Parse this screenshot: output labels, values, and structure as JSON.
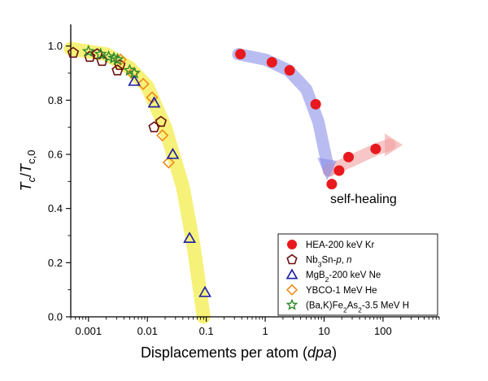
{
  "chart_data": {
    "type": "scatter",
    "xscale": "log",
    "xlim": [
      0.0005,
      900
    ],
    "ylim": [
      0,
      1.08
    ],
    "xlabel_main": "Displacements per atom (",
    "xlabel_italic": "dpa",
    "xlabel_end": ")",
    "ylabel": "T_c/T_c,0",
    "xticks": [
      0.001,
      0.01,
      0.1,
      1,
      10,
      100
    ],
    "xtick_labels": [
      "0.001",
      "0.01",
      "0.1",
      "1",
      "10",
      "100"
    ],
    "yticks": [
      0.0,
      0.2,
      0.4,
      0.6,
      0.8,
      1.0
    ],
    "ytick_labels": [
      "0.0",
      "0.2",
      "0.4",
      "0.6",
      "0.8",
      "1.0"
    ],
    "annotation": "self-healing",
    "series": [
      {
        "name": "HEA-200 keV Kr",
        "marker": "filled-circle",
        "color": "#e8191e",
        "points": [
          [
            0.38,
            0.97
          ],
          [
            1.3,
            0.94
          ],
          [
            2.6,
            0.91
          ],
          [
            7.2,
            0.785
          ],
          [
            13.5,
            0.49
          ],
          [
            18,
            0.54
          ],
          [
            26,
            0.59
          ],
          [
            75,
            0.62
          ]
        ]
      },
      {
        "name": "Nb3Sn-p, n",
        "marker": "open-pentagon",
        "color": "#6b0f0f",
        "points": [
          [
            0.00055,
            0.975
          ],
          [
            0.00105,
            0.96
          ],
          [
            0.0014,
            0.97
          ],
          [
            0.0017,
            0.945
          ],
          [
            0.0031,
            0.91
          ],
          [
            0.0034,
            0.93
          ],
          [
            0.013,
            0.7
          ],
          [
            0.017,
            0.72
          ]
        ]
      },
      {
        "name": "MgB2-200 keV Ne",
        "marker": "open-triangle",
        "color": "#1a1aa8",
        "points": [
          [
            0.006,
            0.87
          ],
          [
            0.013,
            0.79
          ],
          [
            0.027,
            0.6
          ],
          [
            0.052,
            0.29
          ],
          [
            0.095,
            0.09
          ]
        ]
      },
      {
        "name": "YBCO-1 MeV He",
        "marker": "open-diamond",
        "color": "#f08a1c",
        "points": [
          [
            0.0035,
            0.95
          ],
          [
            0.0056,
            0.9
          ],
          [
            0.0085,
            0.86
          ],
          [
            0.012,
            0.81
          ],
          [
            0.018,
            0.67
          ],
          [
            0.023,
            0.57
          ]
        ]
      },
      {
        "name": "(Ba,K)Fe2As2-3.5 MeV H",
        "marker": "open-star",
        "color": "#2f8a2f",
        "points": [
          [
            0.001,
            0.98
          ],
          [
            0.0016,
            0.97
          ],
          [
            0.0022,
            0.96
          ],
          [
            0.0027,
            0.955
          ],
          [
            0.0031,
            0.95
          ],
          [
            0.005,
            0.91
          ],
          [
            0.006,
            0.9
          ]
        ]
      }
    ],
    "bands": [
      {
        "color": "#f5f06a",
        "points": [
          [
            0.0005,
            0.99
          ],
          [
            0.002,
            0.97
          ],
          [
            0.005,
            0.92
          ],
          [
            0.01,
            0.85
          ],
          [
            0.02,
            0.7
          ],
          [
            0.04,
            0.48
          ],
          [
            0.06,
            0.27
          ],
          [
            0.08,
            0.08
          ],
          [
            0.09,
            0.0
          ]
        ]
      },
      {
        "color": "#8b8fe8",
        "points": [
          [
            0.35,
            0.97
          ],
          [
            1,
            0.95
          ],
          [
            2.5,
            0.91
          ],
          [
            5,
            0.84
          ],
          [
            8,
            0.72
          ],
          [
            10,
            0.62
          ],
          [
            12,
            0.54
          ]
        ]
      },
      {
        "color": "#f2a0a0",
        "points": [
          [
            12,
            0.54
          ],
          [
            20,
            0.56
          ],
          [
            40,
            0.59
          ],
          [
            80,
            0.62
          ],
          [
            130,
            0.635
          ]
        ]
      }
    ],
    "legend": {
      "position": "bottom-right",
      "entries": [
        {
          "main": "HEA-200 keV Kr"
        },
        {
          "main": "Nb",
          "sub": "3",
          "after": "Sn-",
          "italic": "p",
          "after2": ", ",
          "italic2": "n"
        },
        {
          "main": "MgB",
          "sub": "2",
          "after": "-200 keV Ne"
        },
        {
          "main": "YBCO-1 MeV He"
        },
        {
          "main": "(Ba,K)Fe",
          "sub": "2",
          "after": "As",
          "sub2": "2",
          "after2": "-3.5 MeV H"
        }
      ]
    }
  }
}
